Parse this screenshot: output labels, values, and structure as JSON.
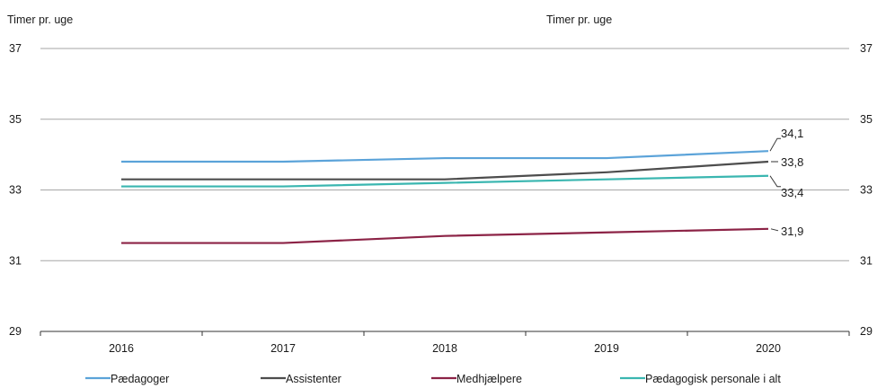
{
  "chart_data": {
    "type": "line",
    "title": "",
    "ylabel_left": "Timer pr. uge",
    "ylabel_right": "Timer pr. uge",
    "xlabel": "",
    "categories": [
      "2016",
      "2017",
      "2018",
      "2019",
      "2020"
    ],
    "ylim": [
      29,
      37
    ],
    "yticks": [
      29,
      31,
      33,
      35,
      37
    ],
    "grid": true,
    "legend_position": "bottom",
    "series": [
      {
        "name": "Pædagoger",
        "color": "#5ba3d9",
        "values": [
          33.8,
          33.8,
          33.9,
          33.9,
          34.1
        ],
        "end_label": "34,1"
      },
      {
        "name": "Assistenter",
        "color": "#4d4d4d",
        "values": [
          33.3,
          33.3,
          33.3,
          33.5,
          33.8
        ],
        "end_label": "33,8"
      },
      {
        "name": "Medhjælpere",
        "color": "#8c2346",
        "values": [
          31.5,
          31.5,
          31.7,
          31.8,
          31.9
        ],
        "end_label": "31,9"
      },
      {
        "name": "Pædagogisk personale i alt",
        "color": "#3ab6b0",
        "values": [
          33.1,
          33.1,
          33.2,
          33.3,
          33.4
        ],
        "end_label": "33,4"
      }
    ]
  }
}
